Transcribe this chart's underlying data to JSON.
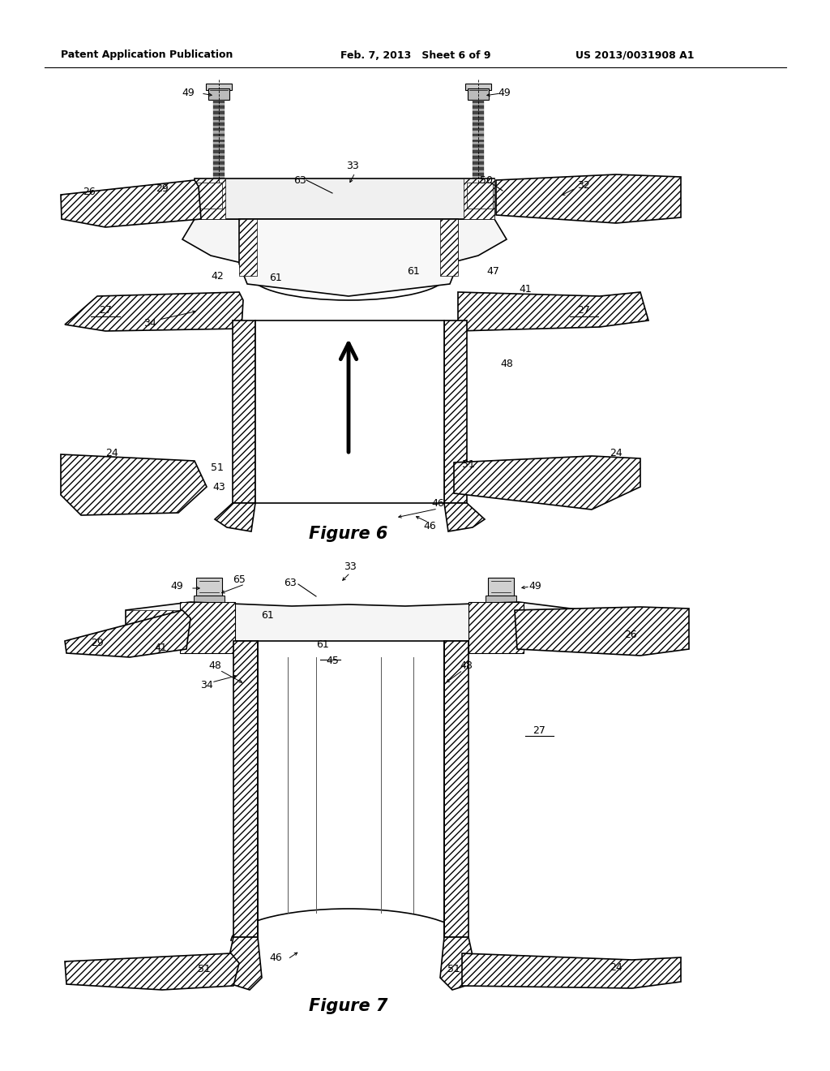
{
  "header_left": "Patent Application Publication",
  "header_mid": "Feb. 7, 2013   Sheet 6 of 9",
  "header_right": "US 2013/0031908 A1",
  "fig6_caption": "Figure 6",
  "fig7_caption": "Figure 7",
  "bg_color": "#ffffff",
  "line_color": "#000000",
  "fig_width": 10.24,
  "fig_height": 13.2,
  "dpi": 100
}
